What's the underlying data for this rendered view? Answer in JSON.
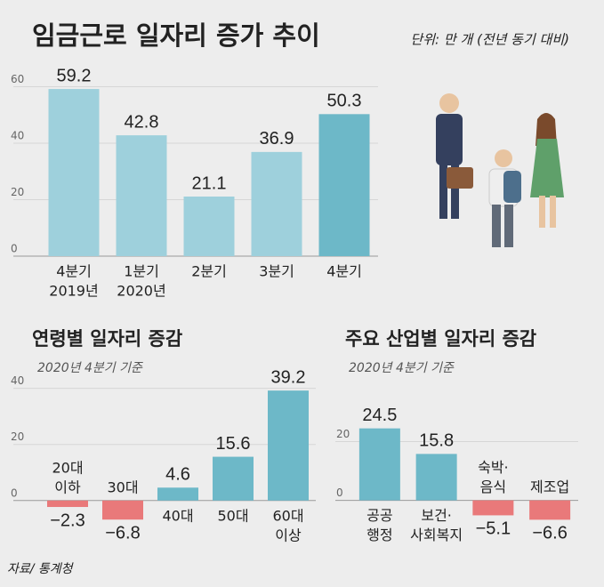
{
  "title": "임금근로 일자리 증가 추이",
  "unit": "단위: 만 개 (전년 동기 대비)",
  "source": "자료/ 통계청",
  "chart_data": [
    {
      "type": "bar",
      "categories": [
        [
          "4분기",
          "2019년"
        ],
        [
          "1분기",
          "2020년"
        ],
        [
          "2분기"
        ],
        [
          "3분기"
        ],
        [
          "4분기"
        ]
      ],
      "values": [
        59.2,
        42.8,
        21.1,
        36.9,
        50.3
      ],
      "colors": [
        "#9ed0dc",
        "#9ed0dc",
        "#9ed0dc",
        "#9ed0dc",
        "#6db8c8"
      ],
      "ylim": [
        0,
        63
      ],
      "yticks": [
        0,
        20,
        40,
        60
      ],
      "grid": true
    },
    {
      "type": "bar",
      "title": "연령별 일자리 증감",
      "subtitle": "2020년 4분기 기준",
      "categories": [
        [
          "20대",
          "이하"
        ],
        [
          "30대"
        ],
        [
          "40대"
        ],
        [
          "50대"
        ],
        [
          "60대",
          "이상"
        ]
      ],
      "values": [
        -2.3,
        -6.8,
        4.6,
        15.6,
        39.2
      ],
      "value_labels": [
        "−2.3",
        "−6.8",
        "4.6",
        "15.6",
        "39.2"
      ],
      "colors": [
        "#e9797a",
        "#e9797a",
        "#6db8c8",
        "#6db8c8",
        "#6db8c8"
      ],
      "ylim": [
        -8,
        44
      ],
      "yticks": [
        0,
        20,
        40
      ],
      "grid": true
    },
    {
      "type": "bar",
      "title": "주요 산업별 일자리 증감",
      "subtitle": "2020년 4분기 기준",
      "categories": [
        [
          "공공",
          "행정"
        ],
        [
          "보건·",
          "사회복지"
        ],
        [
          "숙박·",
          "음식"
        ],
        [
          "제조업"
        ]
      ],
      "values": [
        24.5,
        15.8,
        -5.1,
        -6.6
      ],
      "value_labels": [
        "24.5",
        "15.8",
        "−5.1",
        "−6.6"
      ],
      "colors": [
        "#6db8c8",
        "#6db8c8",
        "#e9797a",
        "#e9797a"
      ],
      "ylim": [
        -8,
        25
      ],
      "yticks": [
        0,
        20
      ],
      "grid": true
    }
  ]
}
